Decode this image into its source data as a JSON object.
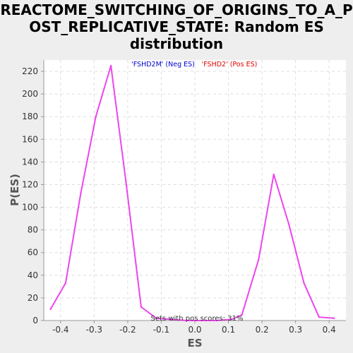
{
  "chart_data": {
    "type": "line",
    "title_lines": [
      "REACTOME_SWITCHING_OF_ORIGINS_TO_A_P",
      "OST_REPLICATIVE_STATE: Random ES",
      "distribution"
    ],
    "xlabel": "ES",
    "ylabel": "P(ES)",
    "xlim": [
      -0.45,
      0.45
    ],
    "ylim": [
      0,
      230
    ],
    "xticks": [
      -0.4,
      -0.3,
      -0.2,
      -0.1,
      0.0,
      0.1,
      0.2,
      0.3,
      0.4
    ],
    "xtick_labels": [
      "-0.4",
      "-0.3",
      "-0.2",
      "-0.1",
      "0.0",
      "0.1",
      "0.2",
      "0.3",
      "0.4"
    ],
    "yticks": [
      0,
      20,
      40,
      60,
      80,
      100,
      120,
      140,
      160,
      180,
      200,
      220
    ],
    "ytick_labels": [
      "0",
      "20",
      "40",
      "60",
      "80",
      "100",
      "120",
      "140",
      "160",
      "180",
      "200",
      "220"
    ],
    "grid": true,
    "legend": [
      {
        "label": "'FSHD2M' (Neg ES)",
        "color": "#0000cc"
      },
      {
        "label": "'FSHD2' (Pos ES)",
        "color": "#dd0000"
      }
    ],
    "annotation": "Sets with pos scores: 31%",
    "series": [
      {
        "color": "#ee44ee",
        "x": [
          -0.43,
          -0.385,
          -0.34,
          -0.295,
          -0.25,
          -0.205,
          -0.16,
          -0.115,
          -0.07,
          -0.025,
          0.02,
          0.065,
          0.11,
          0.14,
          0.19,
          0.235,
          0.28,
          0.325,
          0.37,
          0.415
        ],
        "y": [
          10,
          33,
          112,
          180,
          225,
          122,
          12,
          2,
          1,
          0,
          0,
          0,
          1,
          5,
          54,
          129,
          85,
          33,
          3,
          2
        ]
      }
    ]
  }
}
